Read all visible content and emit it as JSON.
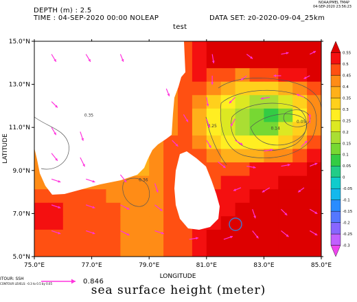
{
  "header": {
    "depth_text": "DEPTH (m) : 2.5",
    "time_text": "TIME : 04-SEP-2020 00:00 NOLEAP",
    "dataset_text": "DATA SET: z0-2020-09-04_25km",
    "plot_title": "test",
    "ferret_name": "NOAA/PMEL TMAP",
    "ferret_date": "04-SEP-2020 23:56:23"
  },
  "footer": {
    "contour_label": "ITOUR: SSH",
    "contour_small": "CONTOUR LEVELS: -0.3 to 0.5 by 0.05",
    "vector_label": "0.846",
    "caption": "sea surface height (meter)"
  },
  "colors": {
    "land": "#ffffff",
    "vector": "#ff33dd",
    "contour": "#555555",
    "marker": "#4477cc"
  },
  "chart_data": {
    "type": "heatmap",
    "title": "test",
    "xlabel": "LONGITUDE",
    "ylabel": "LATITUDE",
    "xlim": [
      75,
      85
    ],
    "ylim": [
      5,
      15
    ],
    "x_ticks": [
      {
        "value": 75,
        "label": "75.0°E"
      },
      {
        "value": 77,
        "label": "77.0°E"
      },
      {
        "value": 79,
        "label": "79.0°E"
      },
      {
        "value": 81,
        "label": "81.0°E"
      },
      {
        "value": 83,
        "label": "83.0°E"
      },
      {
        "value": 85,
        "label": "85.0°E"
      }
    ],
    "y_ticks": [
      {
        "value": 5,
        "label": "5.0°N"
      },
      {
        "value": 7,
        "label": "7.0°N"
      },
      {
        "value": 9,
        "label": "9.0°N"
      },
      {
        "value": 11,
        "label": "11.0°N"
      },
      {
        "value": 13,
        "label": "13.0°N"
      },
      {
        "value": 15,
        "label": "15.0°N"
      }
    ],
    "colorbar": {
      "levels": [
        "-0.3",
        "-0.25",
        "-0.2",
        "-0.15",
        "-0.1",
        "-0.05",
        "0",
        "0.05",
        "0.1",
        "0.15",
        "0.2",
        "0.25",
        "0.3",
        "0.35",
        "0.4",
        "0.45",
        "0.5",
        "0.55"
      ],
      "colors": [
        "#ee44ee",
        "#c060ff",
        "#8866ff",
        "#5577ff",
        "#2a8cff",
        "#14b8ec",
        "#10cccc",
        "#22cc88",
        "#33cc44",
        "#77d833",
        "#aade33",
        "#dde822",
        "#ffee22",
        "#ffd01c",
        "#ffb01a",
        "#ff8c16",
        "#ff5012",
        "#f41010",
        "#dd0000"
      ]
    },
    "vector_reference": 0.846,
    "contour_labels": [
      {
        "lon": 76.9,
        "lat": 11.5,
        "label": "0.35"
      },
      {
        "lon": 78.8,
        "lat": 8.5,
        "label": "0.36"
      },
      {
        "lon": 81.2,
        "lat": 11.0,
        "label": "0.25"
      },
      {
        "lon": 83.4,
        "lat": 10.9,
        "label": "0.14"
      },
      {
        "lon": 84.3,
        "lat": 11.2,
        "label": "0.05"
      }
    ],
    "ssh_grid": [
      [
        0.4,
        0.4,
        0.4,
        0.4,
        0.4,
        0.4,
        0.4,
        0.4,
        0.4,
        0.4,
        0.45,
        0.5,
        0.55,
        0.55,
        0.55,
        0.55,
        0.55,
        0.55,
        0.55,
        0.55
      ],
      [
        0.4,
        0.4,
        0.4,
        0.4,
        0.4,
        0.4,
        0.4,
        0.4,
        0.4,
        0.4,
        0.45,
        0.5,
        0.55,
        0.55,
        0.55,
        0.55,
        0.55,
        0.55,
        0.55,
        0.55
      ],
      [
        0.4,
        0.4,
        0.4,
        0.4,
        0.4,
        0.4,
        0.4,
        0.4,
        0.4,
        0.4,
        0.45,
        0.5,
        0.45,
        0.45,
        0.4,
        0.45,
        0.45,
        0.5,
        0.5,
        0.55
      ],
      [
        0.4,
        0.4,
        0.4,
        0.4,
        0.4,
        0.4,
        0.4,
        0.4,
        0.4,
        0.4,
        0.45,
        0.45,
        0.4,
        0.35,
        0.3,
        0.3,
        0.3,
        0.35,
        0.4,
        0.45
      ],
      [
        0.35,
        0.4,
        0.4,
        0.4,
        0.4,
        0.4,
        0.4,
        0.4,
        0.4,
        0.4,
        0.45,
        0.4,
        0.3,
        0.25,
        0.2,
        0.15,
        0.15,
        0.2,
        0.3,
        0.4
      ],
      [
        0.35,
        0.35,
        0.4,
        0.4,
        0.4,
        0.4,
        0.4,
        0.4,
        0.4,
        0.4,
        0.45,
        0.35,
        0.25,
        0.2,
        0.15,
        0.1,
        0.05,
        0.1,
        0.25,
        0.4
      ],
      [
        0.35,
        0.35,
        0.35,
        0.4,
        0.4,
        0.4,
        0.4,
        0.4,
        0.4,
        0.4,
        0.45,
        0.35,
        0.25,
        0.2,
        0.15,
        0.1,
        0.1,
        0.2,
        0.3,
        0.4
      ],
      [
        0.35,
        0.35,
        0.35,
        0.35,
        0.4,
        0.4,
        0.35,
        0.35,
        0.4,
        0.45,
        0.45,
        0.4,
        0.3,
        0.25,
        0.25,
        0.25,
        0.25,
        0.3,
        0.35,
        0.45
      ],
      [
        0.4,
        0.4,
        0.4,
        0.4,
        0.4,
        0.4,
        0.35,
        0.35,
        0.4,
        0.45,
        0.45,
        0.45,
        0.4,
        0.35,
        0.35,
        0.35,
        0.4,
        0.4,
        0.45,
        0.5
      ],
      [
        0.4,
        0.4,
        0.4,
        0.4,
        0.4,
        0.4,
        0.35,
        0.35,
        0.4,
        0.45,
        0.45,
        0.45,
        0.45,
        0.45,
        0.45,
        0.5,
        0.5,
        0.5,
        0.5,
        0.55
      ],
      [
        0.4,
        0.4,
        0.4,
        0.4,
        0.4,
        0.4,
        0.4,
        0.4,
        0.4,
        0.45,
        0.45,
        0.45,
        0.45,
        0.5,
        0.5,
        0.5,
        0.5,
        0.55,
        0.55,
        0.55
      ],
      [
        0.45,
        0.45,
        0.45,
        0.45,
        0.45,
        0.4,
        0.4,
        0.4,
        0.4,
        0.45,
        0.45,
        0.45,
        0.5,
        0.5,
        0.5,
        0.55,
        0.55,
        0.55,
        0.55,
        0.55
      ],
      [
        0.5,
        0.5,
        0.45,
        0.45,
        0.45,
        0.45,
        0.4,
        0.4,
        0.4,
        0.45,
        0.45,
        0.5,
        0.5,
        0.5,
        0.55,
        0.55,
        0.55,
        0.55,
        0.55,
        0.55
      ],
      [
        0.5,
        0.5,
        0.45,
        0.45,
        0.45,
        0.45,
        0.4,
        0.4,
        0.4,
        0.45,
        0.45,
        0.5,
        0.5,
        0.55,
        0.55,
        0.55,
        0.55,
        0.55,
        0.55,
        0.55
      ],
      [
        0.45,
        0.45,
        0.45,
        0.45,
        0.45,
        0.45,
        0.4,
        0.4,
        0.4,
        0.45,
        0.45,
        0.5,
        0.55,
        0.55,
        0.55,
        0.55,
        0.55,
        0.55,
        0.55,
        0.55
      ],
      [
        0.45,
        0.45,
        0.45,
        0.45,
        0.45,
        0.45,
        0.4,
        0.4,
        0.4,
        0.45,
        0.45,
        0.5,
        0.55,
        0.55,
        0.55,
        0.55,
        0.55,
        0.55,
        0.55,
        0.55
      ]
    ],
    "vectors": [
      {
        "lon": 75.6,
        "lat": 14.4,
        "u": 0.3,
        "v": -0.5
      },
      {
        "lon": 76.8,
        "lat": 14.4,
        "u": 0.3,
        "v": -0.5
      },
      {
        "lon": 78.0,
        "lat": 14.4,
        "u": 0.2,
        "v": -0.5
      },
      {
        "lon": 81.2,
        "lat": 14.4,
        "u": 0.1,
        "v": -0.6
      },
      {
        "lon": 82.4,
        "lat": 14.4,
        "u": 0.4,
        "v": -0.3
      },
      {
        "lon": 83.6,
        "lat": 14.4,
        "u": 0.5,
        "v": 0.1
      },
      {
        "lon": 84.6,
        "lat": 14.4,
        "u": 0.4,
        "v": 0.2
      },
      {
        "lon": 81.2,
        "lat": 13.4,
        "u": 0.0,
        "v": -0.6
      },
      {
        "lon": 82.4,
        "lat": 13.4,
        "u": -0.4,
        "v": -0.3
      },
      {
        "lon": 83.6,
        "lat": 13.4,
        "u": -0.5,
        "v": 0.0
      },
      {
        "lon": 84.6,
        "lat": 13.4,
        "u": -0.4,
        "v": -0.2
      },
      {
        "lon": 81.0,
        "lat": 12.4,
        "u": 0.1,
        "v": -0.6
      },
      {
        "lon": 82.0,
        "lat": 12.4,
        "u": -0.4,
        "v": -0.4
      },
      {
        "lon": 83.2,
        "lat": 12.4,
        "u": -0.6,
        "v": -0.1
      },
      {
        "lon": 84.4,
        "lat": 12.4,
        "u": -0.5,
        "v": 0.2
      },
      {
        "lon": 81.0,
        "lat": 11.4,
        "u": 0.2,
        "v": -0.6
      },
      {
        "lon": 82.0,
        "lat": 11.4,
        "u": -0.3,
        "v": -0.5
      },
      {
        "lon": 84.6,
        "lat": 11.2,
        "u": 0.0,
        "v": 0.6
      },
      {
        "lon": 81.0,
        "lat": 10.4,
        "u": 0.3,
        "v": -0.5
      },
      {
        "lon": 82.0,
        "lat": 10.4,
        "u": 0.5,
        "v": -0.3
      },
      {
        "lon": 83.0,
        "lat": 9.9,
        "u": 0.6,
        "v": 0.1
      },
      {
        "lon": 84.3,
        "lat": 10.1,
        "u": 0.4,
        "v": 0.4
      },
      {
        "lon": 81.4,
        "lat": 9.4,
        "u": 0.5,
        "v": -0.4
      },
      {
        "lon": 82.4,
        "lat": 9.2,
        "u": 0.6,
        "v": -0.1
      },
      {
        "lon": 83.6,
        "lat": 9.2,
        "u": 0.6,
        "v": 0.1
      },
      {
        "lon": 84.6,
        "lat": 9.2,
        "u": 0.5,
        "v": 0.2
      },
      {
        "lon": 82.2,
        "lat": 8.2,
        "u": -0.5,
        "v": -0.2
      },
      {
        "lon": 83.2,
        "lat": 8.2,
        "u": -0.5,
        "v": -0.3
      },
      {
        "lon": 84.4,
        "lat": 8.2,
        "u": -0.4,
        "v": -0.3
      },
      {
        "lon": 82.6,
        "lat": 7.2,
        "u": 0.2,
        "v": -0.6
      },
      {
        "lon": 83.6,
        "lat": 7.2,
        "u": 0.4,
        "v": -0.4
      },
      {
        "lon": 84.6,
        "lat": 7.2,
        "u": 0.5,
        "v": -0.3
      },
      {
        "lon": 82.6,
        "lat": 6.2,
        "u": 0.4,
        "v": -0.5
      },
      {
        "lon": 83.6,
        "lat": 6.2,
        "u": 0.5,
        "v": -0.4
      },
      {
        "lon": 84.6,
        "lat": 6.2,
        "u": 0.5,
        "v": -0.3
      },
      {
        "lon": 75.6,
        "lat": 12.2,
        "u": 0.4,
        "v": -0.4
      },
      {
        "lon": 75.6,
        "lat": 11.0,
        "u": 0.3,
        "v": -0.5
      },
      {
        "lon": 76.6,
        "lat": 10.8,
        "u": 0.2,
        "v": -0.6
      },
      {
        "lon": 75.6,
        "lat": 9.8,
        "u": 0.4,
        "v": -0.5
      },
      {
        "lon": 76.6,
        "lat": 9.6,
        "u": 0.3,
        "v": -0.6
      },
      {
        "lon": 75.6,
        "lat": 8.6,
        "u": 0.6,
        "v": -0.2
      },
      {
        "lon": 76.8,
        "lat": 8.6,
        "u": 0.6,
        "v": -0.2
      },
      {
        "lon": 78.0,
        "lat": 8.8,
        "u": 0.4,
        "v": -0.5
      },
      {
        "lon": 79.2,
        "lat": 8.4,
        "u": 0.2,
        "v": -0.6
      },
      {
        "lon": 75.6,
        "lat": 7.4,
        "u": 0.6,
        "v": -0.2
      },
      {
        "lon": 76.8,
        "lat": 7.4,
        "u": 0.6,
        "v": -0.2
      },
      {
        "lon": 78.0,
        "lat": 7.4,
        "u": 0.6,
        "v": -0.3
      },
      {
        "lon": 79.2,
        "lat": 7.4,
        "u": 0.5,
        "v": -0.4
      },
      {
        "lon": 75.6,
        "lat": 6.2,
        "u": 0.6,
        "v": -0.2
      },
      {
        "lon": 76.8,
        "lat": 6.2,
        "u": 0.6,
        "v": -0.2
      },
      {
        "lon": 78.0,
        "lat": 6.2,
        "u": 0.6,
        "v": -0.3
      },
      {
        "lon": 79.2,
        "lat": 6.2,
        "u": 0.6,
        "v": -0.2
      },
      {
        "lon": 80.4,
        "lat": 5.8,
        "u": 0.6,
        "v": 0.1
      },
      {
        "lon": 81.6,
        "lat": 5.8,
        "u": 0.6,
        "v": 0.2
      },
      {
        "lon": 79.8,
        "lat": 10.4,
        "u": 0.4,
        "v": -0.4
      },
      {
        "lon": 80.2,
        "lat": 11.6,
        "u": 0.3,
        "v": -0.5
      },
      {
        "lon": 79.6,
        "lat": 12.8,
        "u": 0.2,
        "v": -0.5
      }
    ]
  }
}
